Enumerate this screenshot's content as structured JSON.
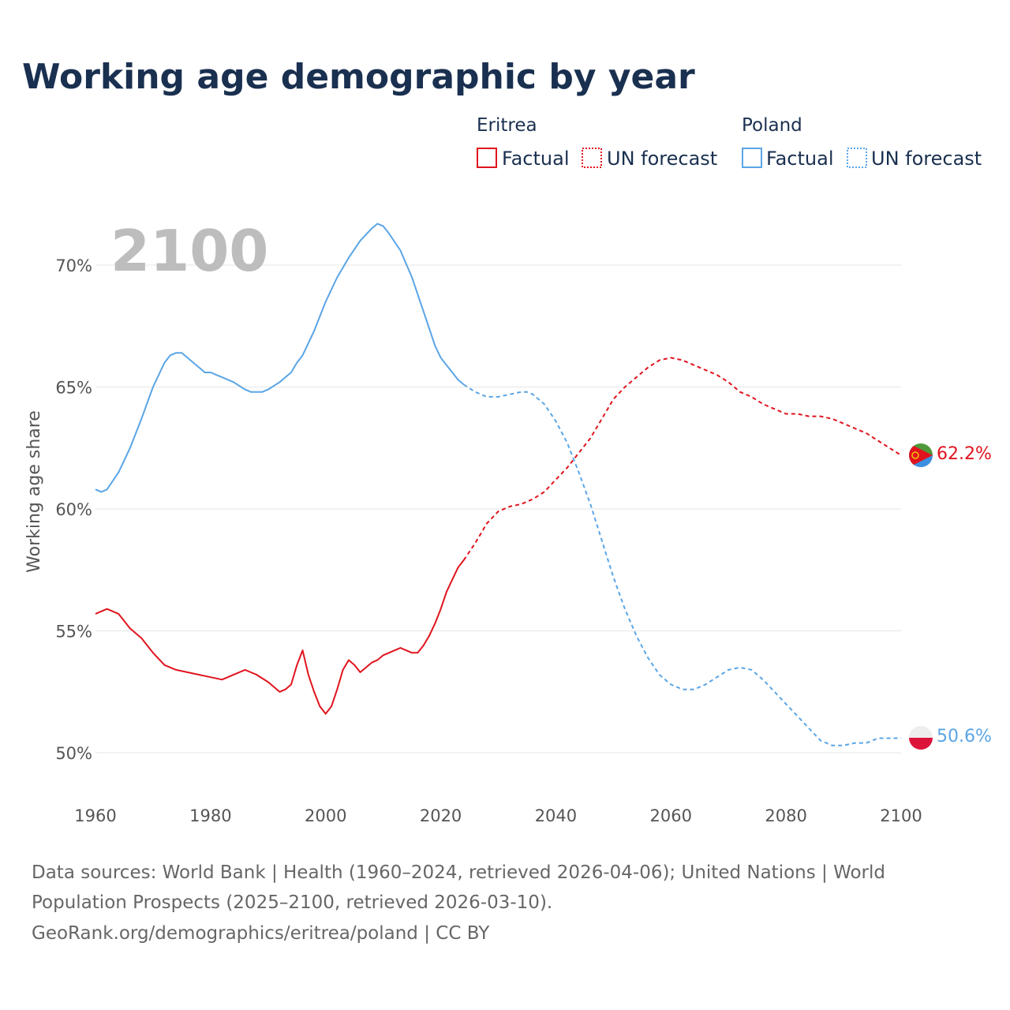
{
  "title": "Working age demographic by year",
  "year_display": "2100",
  "legend": {
    "groups": [
      {
        "name": "Eritrea",
        "factual_label": "Factual",
        "forecast_label": "UN forecast",
        "color": "#e0141e"
      },
      {
        "name": "Poland",
        "factual_label": "Factual",
        "forecast_label": "UN forecast",
        "color": "#5aa5e6"
      }
    ]
  },
  "end_labels": {
    "eritrea": "62.2%",
    "poland": "50.6%"
  },
  "source": {
    "line1": "Data sources: World Bank | Health (1960–2024, retrieved 2026-04-06); United Nations | World",
    "line2": "Population Prospects (2025–2100, retrieved 2026-03-10).",
    "line3": "GeoRank.org/demographics/eritrea/poland | CC BY"
  },
  "chart_data": {
    "type": "line",
    "title": "Working age demographic by year",
    "xlabel": "",
    "ylabel": "Working age share",
    "xlim": [
      1960,
      2100
    ],
    "ylim": [
      49.5,
      72.5
    ],
    "x_ticks": [
      1960,
      1980,
      2000,
      2020,
      2040,
      2060,
      2080,
      2100
    ],
    "y_ticks": [
      50,
      55,
      60,
      65,
      70
    ],
    "y_tick_labels": [
      "50%",
      "55%",
      "60%",
      "65%",
      "70%"
    ],
    "grid": true,
    "legend_position": "top-right",
    "series": [
      {
        "name": "Eritrea",
        "color": "#e0141e",
        "factual": {
          "x": [
            1960,
            1962,
            1964,
            1966,
            1968,
            1970,
            1972,
            1974,
            1976,
            1978,
            1980,
            1982,
            1984,
            1986,
            1987,
            1988,
            1990,
            1992,
            1993,
            1994,
            1995,
            1996,
            1997,
            1998,
            1999,
            2000,
            2001,
            2002,
            2003,
            2004,
            2005,
            2006,
            2007,
            2008,
            2009,
            2010,
            2011,
            2012,
            2013,
            2014,
            2015,
            2016,
            2017,
            2018,
            2019,
            2020,
            2021,
            2022,
            2023,
            2024
          ],
          "y": [
            55.7,
            55.9,
            55.7,
            55.1,
            54.7,
            54.1,
            53.6,
            53.4,
            53.3,
            53.2,
            53.1,
            53.0,
            53.2,
            53.4,
            53.3,
            53.2,
            52.9,
            52.5,
            52.6,
            52.8,
            53.6,
            54.2,
            53.2,
            52.5,
            51.9,
            51.6,
            51.9,
            52.6,
            53.4,
            53.8,
            53.6,
            53.3,
            53.5,
            53.7,
            53.8,
            54.0,
            54.1,
            54.2,
            54.3,
            54.2,
            54.1,
            54.1,
            54.4,
            54.8,
            55.3,
            55.9,
            56.6,
            57.1,
            57.6,
            57.9
          ]
        },
        "forecast": {
          "x": [
            2024,
            2026,
            2028,
            2030,
            2032,
            2034,
            2036,
            2038,
            2040,
            2042,
            2044,
            2046,
            2048,
            2050,
            2052,
            2054,
            2056,
            2058,
            2060,
            2062,
            2064,
            2066,
            2068,
            2070,
            2072,
            2074,
            2076,
            2078,
            2080,
            2082,
            2084,
            2086,
            2088,
            2090,
            2092,
            2094,
            2096,
            2098,
            2100
          ],
          "y": [
            57.9,
            58.6,
            59.4,
            59.9,
            60.1,
            60.2,
            60.4,
            60.7,
            61.2,
            61.7,
            62.3,
            62.9,
            63.7,
            64.5,
            65.0,
            65.4,
            65.8,
            66.1,
            66.2,
            66.1,
            65.9,
            65.7,
            65.5,
            65.2,
            64.8,
            64.6,
            64.3,
            64.1,
            63.9,
            63.9,
            63.8,
            63.8,
            63.7,
            63.5,
            63.3,
            63.1,
            62.8,
            62.5,
            62.2
          ]
        }
      },
      {
        "name": "Poland",
        "color": "#5aa5e6",
        "factual": {
          "x": [
            1960,
            1961,
            1962,
            1964,
            1966,
            1968,
            1970,
            1972,
            1973,
            1974,
            1975,
            1976,
            1977,
            1978,
            1979,
            1980,
            1981,
            1982,
            1984,
            1986,
            1987,
            1988,
            1989,
            1990,
            1992,
            1994,
            1995,
            1996,
            1998,
            2000,
            2002,
            2004,
            2006,
            2008,
            2009,
            2010,
            2011,
            2013,
            2015,
            2017,
            2019,
            2020,
            2021,
            2022,
            2023,
            2024
          ],
          "y": [
            60.8,
            60.7,
            60.8,
            61.5,
            62.5,
            63.7,
            65.0,
            66.0,
            66.3,
            66.4,
            66.4,
            66.2,
            66.0,
            65.8,
            65.6,
            65.6,
            65.5,
            65.4,
            65.2,
            64.9,
            64.8,
            64.8,
            64.8,
            64.9,
            65.2,
            65.6,
            66.0,
            66.3,
            67.3,
            68.5,
            69.5,
            70.3,
            71.0,
            71.5,
            71.7,
            71.6,
            71.3,
            70.6,
            69.5,
            68.1,
            66.7,
            66.2,
            65.9,
            65.6,
            65.3,
            65.1
          ]
        },
        "forecast": {
          "x": [
            2024,
            2026,
            2028,
            2030,
            2032,
            2034,
            2035,
            2036,
            2038,
            2040,
            2042,
            2044,
            2046,
            2048,
            2050,
            2052,
            2054,
            2056,
            2058,
            2060,
            2062,
            2064,
            2066,
            2068,
            2070,
            2072,
            2074,
            2076,
            2078,
            2080,
            2082,
            2084,
            2086,
            2088,
            2090,
            2092,
            2094,
            2096,
            2098,
            2100
          ],
          "y": [
            65.1,
            64.8,
            64.6,
            64.6,
            64.7,
            64.8,
            64.8,
            64.7,
            64.3,
            63.6,
            62.7,
            61.5,
            60.2,
            58.7,
            57.2,
            55.9,
            54.8,
            53.9,
            53.2,
            52.8,
            52.6,
            52.6,
            52.8,
            53.1,
            53.4,
            53.5,
            53.4,
            53.0,
            52.5,
            52.0,
            51.5,
            51.0,
            50.5,
            50.3,
            50.3,
            50.4,
            50.4,
            50.6,
            50.6,
            50.6
          ]
        }
      }
    ]
  }
}
